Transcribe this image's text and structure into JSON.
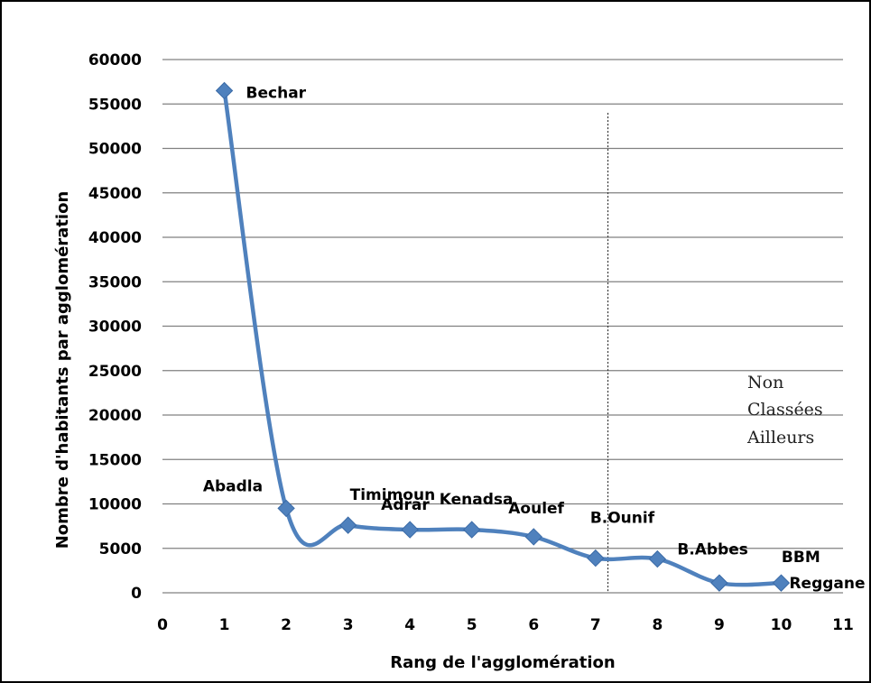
{
  "chart_data": {
    "type": "line",
    "title": "",
    "xlabel": "Rang de l'agglomération",
    "ylabel": "Nombre d'habitants par agglomération",
    "xlim": [
      0,
      11
    ],
    "ylim": [
      0,
      60000
    ],
    "x_ticks": [
      0,
      1,
      2,
      3,
      4,
      5,
      6,
      7,
      8,
      9,
      10,
      11
    ],
    "y_ticks": [
      0,
      5000,
      10000,
      15000,
      20000,
      25000,
      30000,
      35000,
      40000,
      45000,
      50000,
      55000,
      60000
    ],
    "grid": "horizontal",
    "series": [
      {
        "color": "#4f81bd",
        "marker": "diamond",
        "smooth": true,
        "points": [
          {
            "x": 1,
            "y": 56500,
            "label": "Bechar"
          },
          {
            "x": 2,
            "y": 9500,
            "label": "Abadla"
          },
          {
            "x": 3,
            "y": 7600,
            "label": "Timimoun"
          },
          {
            "x": 4,
            "y": 7100,
            "label": "Adrar"
          },
          {
            "x": 5,
            "y": 7100,
            "label": "Kenadsa"
          },
          {
            "x": 6,
            "y": 6300,
            "label": "Aoulef"
          },
          {
            "x": 7,
            "y": 3900,
            "label": "B.Ounif"
          },
          {
            "x": 8,
            "y": 3800,
            "label": "B.Abbes"
          },
          {
            "x": 9,
            "y": 1100,
            "label": "BBM"
          },
          {
            "x": 10,
            "y": 1100,
            "label": "Reggane"
          }
        ]
      }
    ],
    "annotations": {
      "divider_x": 7.2,
      "divider_y_top": 54000,
      "note_lines": [
        "Non",
        "Classées",
        "Ailleurs"
      ]
    }
  }
}
